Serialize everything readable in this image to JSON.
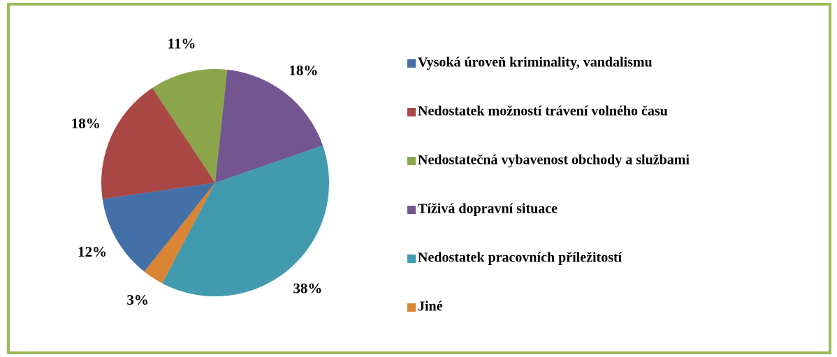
{
  "chart_data": {
    "type": "pie",
    "categories": [
      "Vysoká úroveň kriminality, vandalismu",
      "Nedostatek možností trávení volného času",
      "Nedostatečná vybavenost obchody a službami",
      "Tíživá dopravní situace",
      "Nedostatek pracovních příležitostí",
      "Jiné"
    ],
    "values": [
      12,
      18,
      11,
      18,
      38,
      3
    ],
    "value_labels": [
      "12%",
      "18%",
      "11%",
      "18%",
      "38%",
      "3%"
    ],
    "colors": [
      "#4470a8",
      "#a94744",
      "#8ba64a",
      "#725591",
      "#429aaf",
      "#d98534"
    ],
    "start_angle": 218.5,
    "legend": "right"
  }
}
